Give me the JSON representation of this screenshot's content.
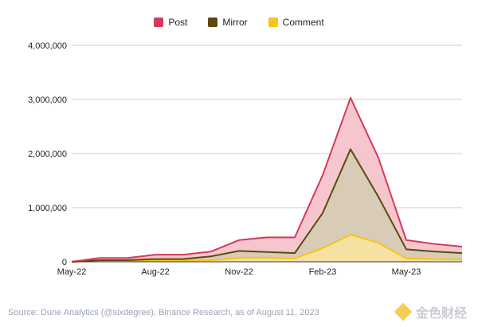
{
  "chart_data": {
    "type": "area",
    "title": "",
    "xlabel": "",
    "ylabel": "",
    "ylim": [
      0,
      4000000
    ],
    "yticks": [
      "0",
      "1,000,000",
      "2,000,000",
      "3,000,000",
      "4,000,000"
    ],
    "ytick_values": [
      0,
      1000000,
      2000000,
      3000000,
      4000000
    ],
    "xticks": [
      "May-22",
      "Aug-22",
      "Nov-22",
      "Feb-23",
      "May-23"
    ],
    "xtick_index": [
      0,
      3,
      6,
      9,
      12
    ],
    "x": [
      "May-22",
      "Jun-22",
      "Jul-22",
      "Aug-22",
      "Sep-22",
      "Oct-22",
      "Nov-22",
      "Dec-22",
      "Jan-23",
      "Feb-23",
      "Mar-23",
      "Apr-23",
      "May-23",
      "Jun-23",
      "Jul-23"
    ],
    "stacked": true,
    "grid": true,
    "legend_position": "top",
    "series": [
      {
        "name": "Comment",
        "color": "#f5c518",
        "values": [
          0,
          10000,
          10000,
          20000,
          20000,
          30000,
          70000,
          70000,
          60000,
          250000,
          500000,
          350000,
          60000,
          50000,
          40000
        ]
      },
      {
        "name": "Mirror",
        "color": "#5c4a0e",
        "values": [
          0,
          20000,
          20000,
          30000,
          30000,
          70000,
          130000,
          110000,
          100000,
          650000,
          1580000,
          850000,
          170000,
          140000,
          120000
        ]
      },
      {
        "name": "Post",
        "color": "#d63a5a",
        "values": [
          0,
          40000,
          40000,
          80000,
          80000,
          90000,
          200000,
          270000,
          290000,
          700000,
          950000,
          720000,
          170000,
          140000,
          120000
        ]
      }
    ],
    "legend_order": [
      "Post",
      "Mirror",
      "Comment"
    ]
  },
  "source": "Source: Dune Analytics (@sixdegree), Binance Research, as of August 11, 2023",
  "watermark": "金色财经"
}
